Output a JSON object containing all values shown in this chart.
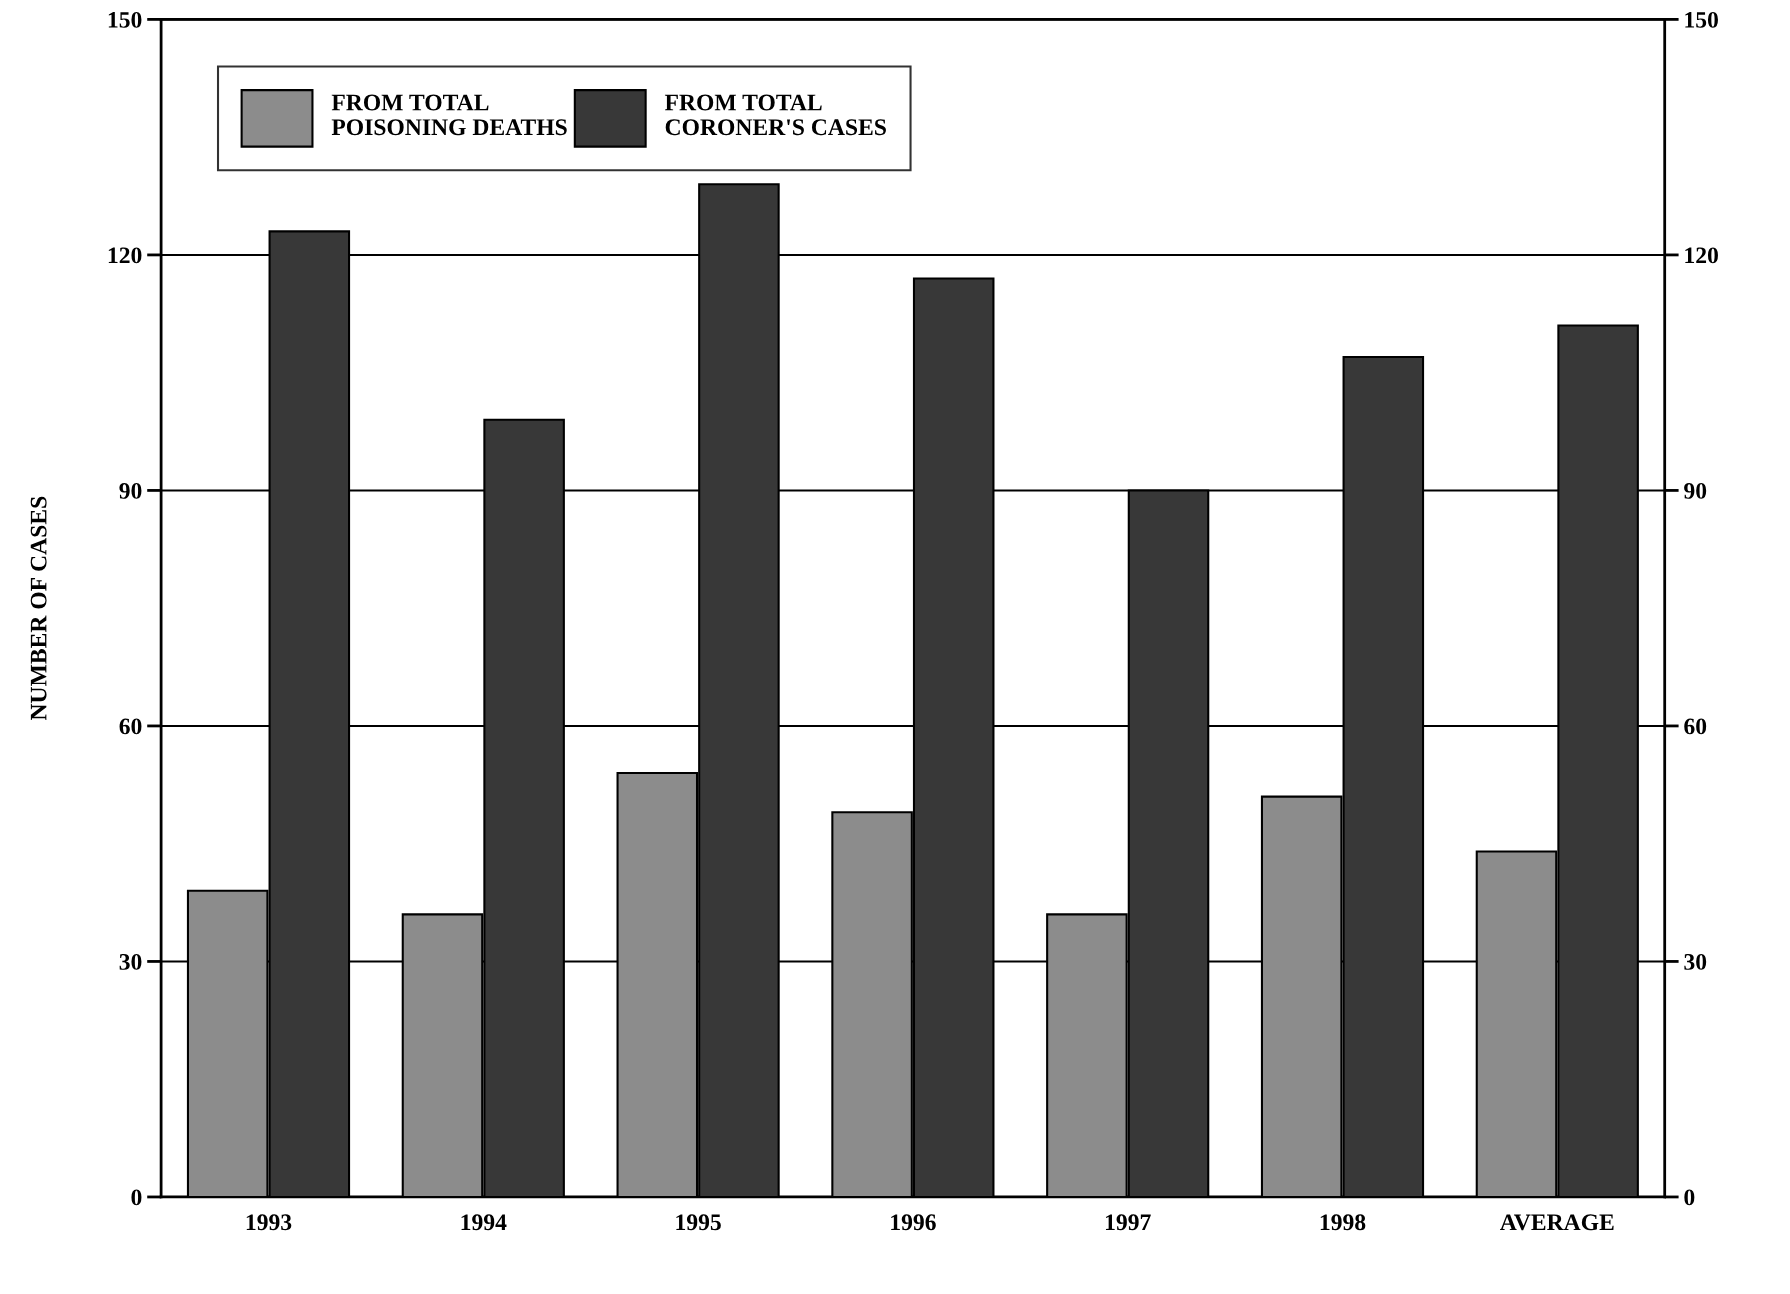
{
  "chart_data": {
    "type": "bar",
    "ylabel": "NUMBER OF CASES",
    "categories": [
      "1993",
      "1994",
      "1995",
      "1996",
      "1997",
      "1998",
      "AVERAGE"
    ],
    "series": [
      {
        "name": "FROM TOTAL\nPOISONING DEATHS",
        "color": "#8c8c8c",
        "values": [
          39,
          36,
          54,
          49,
          36,
          51,
          44
        ]
      },
      {
        "name": "FROM TOTAL\nCORONER'S CASES",
        "color": "#383838",
        "values": [
          123,
          99,
          129,
          117,
          90,
          107,
          111
        ]
      }
    ],
    "ylim": [
      0,
      150
    ],
    "yticks": [
      0,
      30,
      60,
      90,
      120,
      150
    ],
    "y2lim": [
      0,
      150
    ],
    "y2ticks": [
      0,
      30,
      60,
      90,
      120,
      150
    ],
    "grid": true,
    "legend": "top left"
  }
}
